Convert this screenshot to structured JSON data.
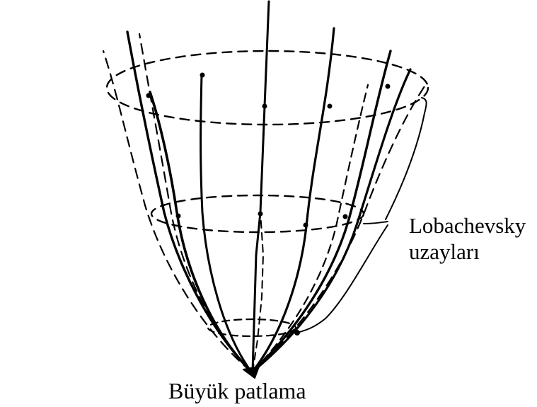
{
  "labels": {
    "big_bang": "Büyük patlama",
    "lobachevsky_line1": "Lobachevsky",
    "lobachevsky_line2": "uzayları"
  },
  "colors": {
    "ink": "#000000",
    "background": "#ffffff"
  }
}
